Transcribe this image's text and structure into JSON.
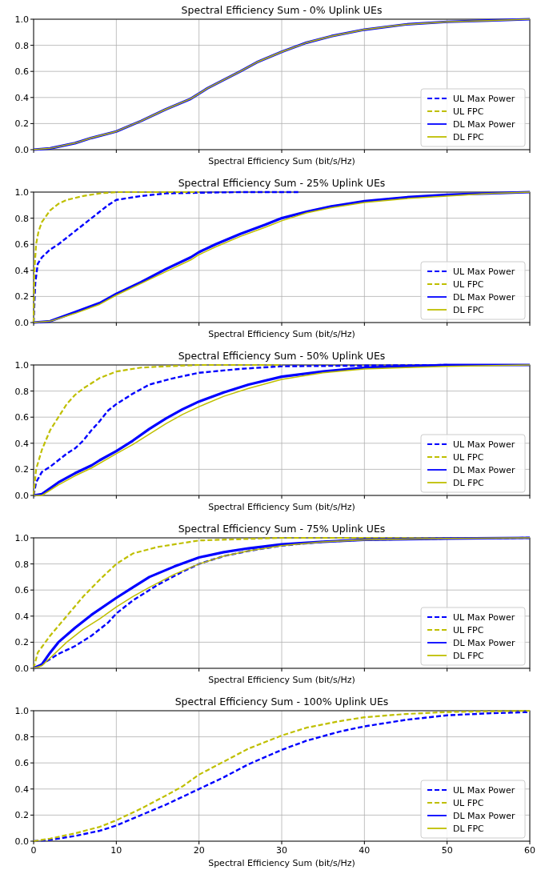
{
  "chart_data": [
    {
      "type": "line",
      "title": "Spectral Efficiency Sum - 0% Uplink UEs",
      "xlabel": "Spectral Efficiency Sum (bit/s/Hz)",
      "xlim": [
        0,
        60
      ],
      "ylim": [
        0,
        1
      ],
      "xticks": [
        0,
        10,
        20,
        30,
        40,
        50,
        60
      ],
      "yticks": [
        {
          "value": 0,
          "label": "0.0"
        },
        {
          "value": 0.2,
          "label": "0.2"
        },
        {
          "value": 0.4,
          "label": "0.4"
        },
        {
          "value": 0.6,
          "label": "0.6"
        },
        {
          "value": 0.8,
          "label": "0.8"
        },
        {
          "value": 1,
          "label": "1.0"
        }
      ],
      "grid": true,
      "legend": "bottom right",
      "tick_labels": "y",
      "series": [
        {
          "name": "UL Max Power",
          "color": "#0000ff",
          "line_style": "dashed"
        },
        {
          "name": "UL FPC",
          "color": "#bfbf00",
          "line_style": "dashed"
        },
        {
          "name": "DL Max Power",
          "color": "#0000ff",
          "line_style": "solid",
          "x": [
            0,
            2,
            5,
            7,
            10,
            13,
            16,
            19,
            21,
            25,
            27,
            30,
            33,
            36,
            40,
            45,
            50,
            55,
            60
          ],
          "values": [
            0,
            0.01,
            0.05,
            0.09,
            0.14,
            0.22,
            0.31,
            0.39,
            0.47,
            0.6,
            0.67,
            0.75,
            0.82,
            0.87,
            0.92,
            0.96,
            0.98,
            0.99,
            1.0
          ]
        },
        {
          "name": "DL FPC",
          "color": "#bfbf00",
          "line_style": "solid",
          "x": [
            0,
            2,
            5,
            7,
            10,
            13,
            16,
            19,
            21,
            25,
            27,
            30,
            33,
            36,
            40,
            45,
            50,
            55,
            60
          ],
          "values": [
            0,
            0.01,
            0.05,
            0.09,
            0.14,
            0.22,
            0.31,
            0.39,
            0.47,
            0.6,
            0.67,
            0.75,
            0.82,
            0.87,
            0.92,
            0.96,
            0.98,
            0.99,
            1.0
          ]
        }
      ]
    },
    {
      "type": "line",
      "title": "Spectral Efficiency Sum - 25% Uplink UEs",
      "xlabel": "Spectral Efficiency Sum (bit/s/Hz)",
      "xlim": [
        0,
        60
      ],
      "ylim": [
        0,
        1
      ],
      "xticks": [
        0,
        10,
        20,
        30,
        40,
        50,
        60
      ],
      "yticks": [
        {
          "value": 0,
          "label": "0.0"
        },
        {
          "value": 0.2,
          "label": "0.2"
        },
        {
          "value": 0.4,
          "label": "0.4"
        },
        {
          "value": 0.6,
          "label": "0.6"
        },
        {
          "value": 0.8,
          "label": "0.8"
        },
        {
          "value": 1,
          "label": "1.0"
        }
      ],
      "grid": true,
      "legend": "bottom right",
      "tick_labels": "y",
      "series": [
        {
          "name": "UL Max Power",
          "color": "#0000ff",
          "line_style": "dashed",
          "x": [
            0,
            0.2,
            0.5,
            1,
            2,
            3,
            5,
            7,
            9,
            10,
            13,
            16,
            20,
            25,
            32
          ],
          "values": [
            0,
            0.3,
            0.45,
            0.5,
            0.56,
            0.6,
            0.7,
            0.8,
            0.9,
            0.94,
            0.97,
            0.99,
            0.995,
            1.0,
            1.0
          ]
        },
        {
          "name": "UL FPC",
          "color": "#bfbf00",
          "line_style": "dashed",
          "x": [
            0,
            0.1,
            0.3,
            0.6,
            1,
            2,
            3,
            4,
            6,
            8,
            10,
            15,
            20
          ],
          "values": [
            0,
            0.4,
            0.6,
            0.7,
            0.77,
            0.86,
            0.91,
            0.94,
            0.97,
            0.99,
            1.0,
            1.0,
            1.0
          ]
        },
        {
          "name": "DL Max Power",
          "color": "#0000ff",
          "line_style": "solid",
          "x": [
            0,
            2,
            5,
            8,
            10,
            13,
            16,
            19,
            20,
            22,
            25,
            28,
            30,
            33,
            36,
            40,
            45,
            50,
            55,
            60
          ],
          "values": [
            0,
            0.01,
            0.08,
            0.15,
            0.22,
            0.31,
            0.41,
            0.5,
            0.54,
            0.6,
            0.68,
            0.75,
            0.8,
            0.85,
            0.89,
            0.93,
            0.96,
            0.98,
            0.99,
            1.0
          ]
        },
        {
          "name": "DL FPC",
          "color": "#bfbf00",
          "line_style": "solid",
          "x": [
            0,
            2,
            5,
            8,
            10,
            13,
            16,
            19,
            20,
            22,
            25,
            28,
            30,
            33,
            36,
            40,
            45,
            50,
            55,
            60
          ],
          "values": [
            0,
            0.01,
            0.07,
            0.14,
            0.21,
            0.3,
            0.39,
            0.48,
            0.52,
            0.58,
            0.66,
            0.73,
            0.78,
            0.84,
            0.88,
            0.92,
            0.95,
            0.97,
            0.99,
            1.0
          ]
        }
      ]
    },
    {
      "type": "line",
      "title": "Spectral Efficiency Sum - 50% Uplink UEs",
      "xlabel": "Spectral Efficiency Sum (bit/s/Hz)",
      "xlim": [
        0,
        60
      ],
      "ylim": [
        0,
        1
      ],
      "xticks": [
        0,
        10,
        20,
        30,
        40,
        50,
        60
      ],
      "yticks": [
        {
          "value": 0,
          "label": "0.0"
        },
        {
          "value": 0.2,
          "label": "0.2"
        },
        {
          "value": 0.4,
          "label": "0.4"
        },
        {
          "value": 0.6,
          "label": "0.6"
        },
        {
          "value": 0.8,
          "label": "0.8"
        },
        {
          "value": 1,
          "label": "1.0"
        }
      ],
      "grid": true,
      "legend": "bottom right",
      "tick_labels": "y",
      "series": [
        {
          "name": "UL Max Power",
          "color": "#0000ff",
          "line_style": "dashed",
          "x": [
            0,
            0.3,
            1,
            2,
            3,
            4,
            5,
            6,
            7,
            8,
            9,
            10,
            12,
            14,
            17,
            20,
            25,
            30,
            40,
            50
          ],
          "values": [
            0,
            0.1,
            0.18,
            0.22,
            0.27,
            0.32,
            0.36,
            0.42,
            0.5,
            0.57,
            0.65,
            0.7,
            0.78,
            0.85,
            0.9,
            0.94,
            0.97,
            0.99,
            0.995,
            1.0
          ]
        },
        {
          "name": "UL FPC",
          "color": "#bfbf00",
          "line_style": "dashed",
          "x": [
            0,
            0.3,
            1,
            2,
            3,
            4,
            5,
            6,
            8,
            10,
            13,
            16,
            20,
            30
          ],
          "values": [
            0,
            0.2,
            0.35,
            0.5,
            0.6,
            0.7,
            0.77,
            0.82,
            0.9,
            0.95,
            0.98,
            0.99,
            1.0,
            1.0
          ]
        },
        {
          "name": "DL Max Power",
          "color": "#0000ff",
          "line_style": "solid",
          "x": [
            0,
            1,
            3,
            5,
            7,
            8,
            10,
            12,
            14,
            16,
            18,
            20,
            23,
            26,
            30,
            35,
            40,
            45,
            50,
            60
          ],
          "values": [
            0,
            0.01,
            0.1,
            0.17,
            0.23,
            0.27,
            0.34,
            0.42,
            0.51,
            0.59,
            0.66,
            0.72,
            0.79,
            0.85,
            0.91,
            0.95,
            0.98,
            0.99,
            1.0,
            1.0
          ]
        },
        {
          "name": "DL FPC",
          "color": "#bfbf00",
          "line_style": "solid",
          "x": [
            0,
            1,
            3,
            5,
            7,
            10,
            12,
            14,
            16,
            18,
            20,
            23,
            26,
            30,
            35,
            40,
            45,
            50,
            60
          ],
          "values": [
            0,
            0,
            0.08,
            0.15,
            0.21,
            0.32,
            0.39,
            0.47,
            0.55,
            0.62,
            0.68,
            0.76,
            0.82,
            0.89,
            0.94,
            0.97,
            0.98,
            0.99,
            1.0
          ]
        }
      ]
    },
    {
      "type": "line",
      "title": "Spectral Efficiency Sum - 75% Uplink UEs",
      "xlabel": "Spectral Efficiency Sum (bit/s/Hz)",
      "xlim": [
        0,
        60
      ],
      "ylim": [
        0,
        1
      ],
      "xticks": [
        0,
        10,
        20,
        30,
        40,
        50,
        60
      ],
      "yticks": [
        {
          "value": 0,
          "label": "0.0"
        },
        {
          "value": 0.2,
          "label": "0.2"
        },
        {
          "value": 0.4,
          "label": "0.4"
        },
        {
          "value": 0.6,
          "label": "0.6"
        },
        {
          "value": 0.8,
          "label": "0.8"
        },
        {
          "value": 1,
          "label": "1.0"
        }
      ],
      "grid": true,
      "legend": "bottom right",
      "tick_labels": "y",
      "series": [
        {
          "name": "UL Max Power",
          "color": "#0000ff",
          "line_style": "dashed",
          "x": [
            0,
            1,
            2,
            3,
            5,
            7,
            9,
            10,
            12,
            15,
            18,
            20,
            23,
            26,
            30,
            35,
            40,
            50,
            60
          ],
          "values": [
            0,
            0.03,
            0.07,
            0.11,
            0.17,
            0.25,
            0.35,
            0.42,
            0.52,
            0.64,
            0.74,
            0.8,
            0.86,
            0.9,
            0.94,
            0.97,
            0.985,
            0.995,
            1.0
          ]
        },
        {
          "name": "UL FPC",
          "color": "#bfbf00",
          "line_style": "dashed",
          "x": [
            0,
            0.5,
            2,
            4,
            6,
            8,
            10,
            12,
            15,
            18,
            20,
            25,
            30,
            60
          ],
          "values": [
            0,
            0.12,
            0.25,
            0.4,
            0.55,
            0.68,
            0.8,
            0.88,
            0.93,
            0.96,
            0.98,
            0.99,
            1.0,
            1.0
          ]
        },
        {
          "name": "DL Max Power",
          "color": "#0000ff",
          "line_style": "solid",
          "x": [
            0,
            1,
            2,
            3,
            5,
            7,
            10,
            12,
            14,
            17,
            20,
            23,
            26,
            30,
            35,
            40,
            50,
            60
          ],
          "values": [
            0,
            0.03,
            0.12,
            0.2,
            0.31,
            0.41,
            0.54,
            0.62,
            0.7,
            0.78,
            0.85,
            0.89,
            0.92,
            0.95,
            0.97,
            0.985,
            0.995,
            1.0
          ]
        },
        {
          "name": "DL FPC",
          "color": "#bfbf00",
          "line_style": "solid",
          "x": [
            0,
            1,
            2,
            4,
            6,
            8,
            10,
            12,
            14,
            17,
            20,
            23,
            26,
            30,
            35,
            40,
            50,
            60
          ],
          "values": [
            0,
            0.02,
            0.08,
            0.2,
            0.3,
            0.38,
            0.47,
            0.55,
            0.62,
            0.72,
            0.8,
            0.86,
            0.9,
            0.94,
            0.97,
            0.985,
            0.995,
            1.0
          ]
        }
      ]
    },
    {
      "type": "line",
      "title": "Spectral Efficiency Sum - 100% Uplink UEs",
      "xlabel": "Spectral Efficiency Sum (bit/s/Hz)",
      "xlim": [
        0,
        60
      ],
      "ylim": [
        0,
        1
      ],
      "xticks": [
        0,
        10,
        20,
        30,
        40,
        50,
        60
      ],
      "yticks": [
        {
          "value": 0,
          "label": "0.0"
        },
        {
          "value": 0.2,
          "label": "0.2"
        },
        {
          "value": 0.4,
          "label": "0.4"
        },
        {
          "value": 0.6,
          "label": "0.6"
        },
        {
          "value": 0.8,
          "label": "0.8"
        },
        {
          "value": 1,
          "label": "1.0"
        }
      ],
      "grid": true,
      "legend": "bottom right",
      "series": [
        {
          "name": "UL Max Power",
          "color": "#0000ff",
          "line_style": "dashed",
          "x": [
            0,
            2,
            5,
            8,
            10,
            13,
            16,
            20,
            23,
            26,
            30,
            33,
            37,
            40,
            45,
            50,
            55,
            60
          ],
          "values": [
            0,
            0.01,
            0.04,
            0.08,
            0.12,
            0.2,
            0.28,
            0.4,
            0.49,
            0.59,
            0.7,
            0.77,
            0.84,
            0.88,
            0.93,
            0.965,
            0.98,
            0.99
          ]
        },
        {
          "name": "UL FPC",
          "color": "#bfbf00",
          "line_style": "dashed",
          "x": [
            0,
            2,
            5,
            8,
            10,
            13,
            16,
            18,
            20,
            23,
            26,
            30,
            33,
            37,
            40,
            45,
            50,
            55,
            60
          ],
          "values": [
            0,
            0.02,
            0.06,
            0.11,
            0.16,
            0.25,
            0.35,
            0.42,
            0.51,
            0.61,
            0.71,
            0.81,
            0.87,
            0.92,
            0.95,
            0.975,
            0.99,
            0.995,
            1.0
          ]
        },
        {
          "name": "DL Max Power",
          "color": "#0000ff",
          "line_style": "solid"
        },
        {
          "name": "DL FPC",
          "color": "#bfbf00",
          "line_style": "solid"
        }
      ]
    }
  ]
}
